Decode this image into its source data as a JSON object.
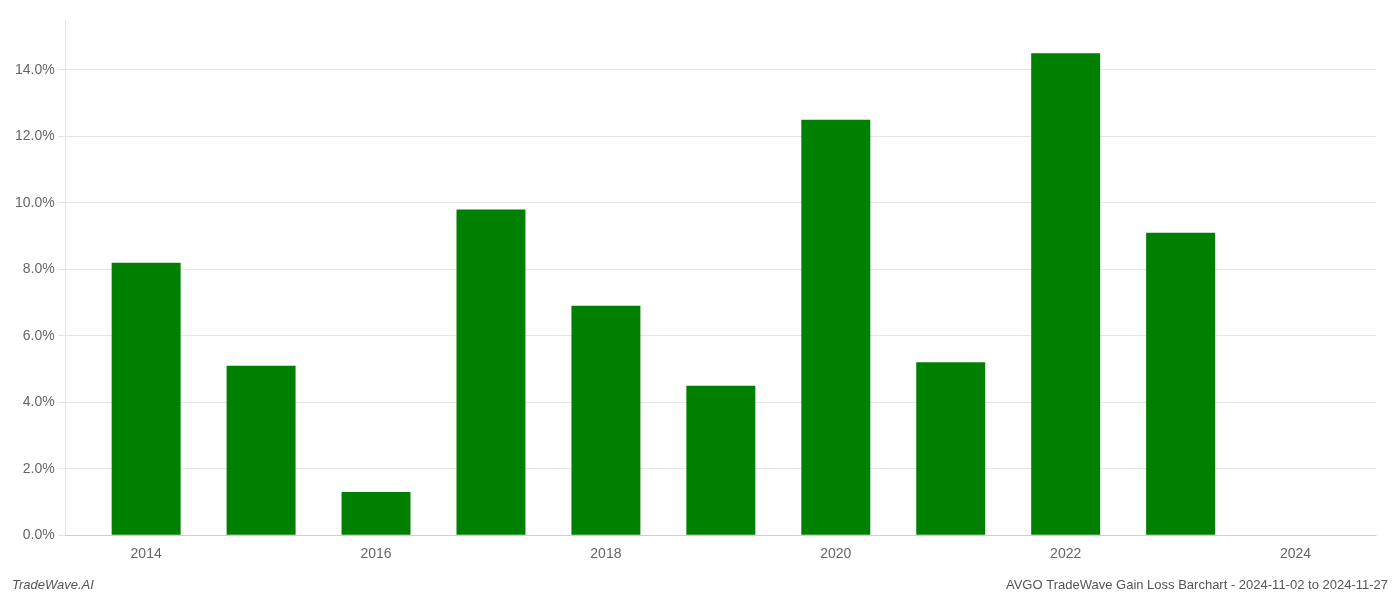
{
  "chart_data": {
    "type": "bar",
    "x": [
      2014,
      2015,
      2016,
      2017,
      2018,
      2019,
      2020,
      2021,
      2022,
      2023
    ],
    "values": [
      0.082,
      0.051,
      0.013,
      0.098,
      0.069,
      0.045,
      0.125,
      0.052,
      0.145,
      0.091
    ],
    "color": "#008000",
    "xlim": [
      2013.3,
      2024.7
    ],
    "xticks": [
      2014,
      2016,
      2018,
      2020,
      2022,
      2024
    ],
    "ylim": [
      0,
      0.155
    ],
    "yticks": [
      {
        "value": 0,
        "label": "0.0%"
      },
      {
        "value": 0.02,
        "label": "2.0%"
      },
      {
        "value": 0.04,
        "label": "4.0%"
      },
      {
        "value": 0.06,
        "label": "6.0%"
      },
      {
        "value": 0.08,
        "label": "8.0%"
      },
      {
        "value": 0.1,
        "label": "10.0%"
      },
      {
        "value": 0.12,
        "label": "12.0%"
      },
      {
        "value": 0.14,
        "label": "14.0%"
      }
    ],
    "grid": true,
    "annotations": [
      "TradeWave.AI",
      "AVGO TradeWave Gain Loss Barchart - 2024-11-02 to 2024-11-27"
    ]
  }
}
